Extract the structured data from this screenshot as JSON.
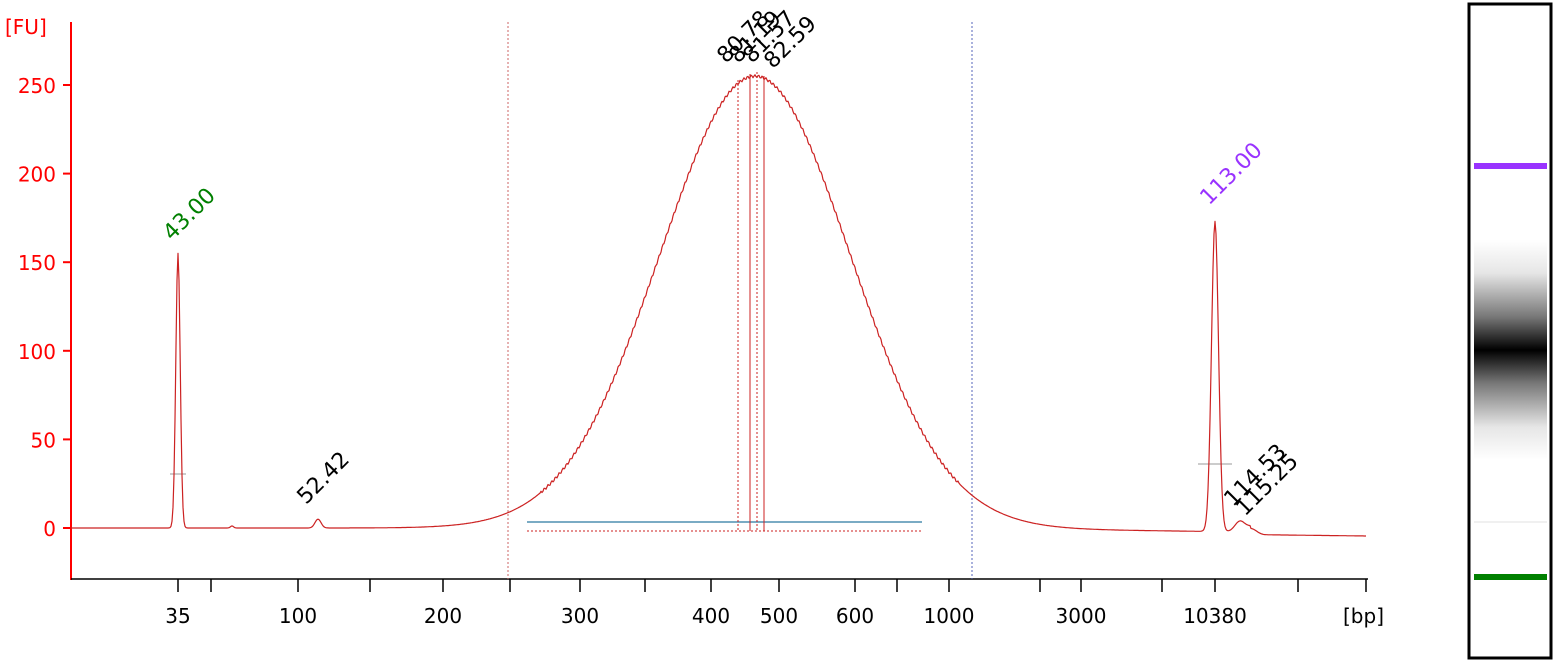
{
  "chart_data": {
    "type": "line",
    "ylabel": "[FU]",
    "xlabel": "[bp]",
    "y_ticks": [
      "250",
      "200",
      "150",
      "100",
      "50",
      "0"
    ],
    "x_ticks": [
      "35",
      "100",
      "200",
      "300",
      "400",
      "500",
      "600",
      "1000",
      "3000",
      "10380"
    ],
    "ylim": [
      -28,
      280
    ],
    "grid": false,
    "peak_labels": [
      {
        "text": "43.00",
        "color": "#008000",
        "x": "35",
        "y": 155
      },
      {
        "text": "52.42",
        "color": "#000000",
        "x": "100",
        "y": 5
      },
      {
        "text": "80.78",
        "color": "#000000",
        "x": "460",
        "y": 255
      },
      {
        "text": "81.19",
        "color": "#000000",
        "x": "465",
        "y": 255
      },
      {
        "text": "81.57",
        "color": "#000000",
        "x": "475",
        "y": 255
      },
      {
        "text": "82.59",
        "color": "#000000",
        "x": "490",
        "y": 252
      },
      {
        "text": "113.00",
        "color": "#9933ff",
        "x": "10380",
        "y": 175
      },
      {
        "text": "114.53",
        "color": "#000000",
        "x": "10380",
        "y": 6
      },
      {
        "text": "115.25",
        "color": "#000000",
        "x": "10380",
        "y": 4
      }
    ],
    "series": [
      {
        "values": [
          {
            "x": "35",
            "y": 155
          },
          {
            "x": "100",
            "y": 5
          },
          {
            "x": "465",
            "y": 255
          },
          {
            "x": "10380",
            "y": 175
          }
        ]
      }
    ]
  },
  "gel_lane": {
    "bands": [
      {
        "name": "upper-marker",
        "color": "#9933ff",
        "size": "10380"
      },
      {
        "name": "sample-smear",
        "color": "#000000",
        "size": "465"
      },
      {
        "name": "lower-marker",
        "color": "#008000",
        "size": "35"
      }
    ]
  },
  "colors": {
    "axis": "#ff0000",
    "trace": "#cc2222",
    "region": "#4f8fb0"
  }
}
